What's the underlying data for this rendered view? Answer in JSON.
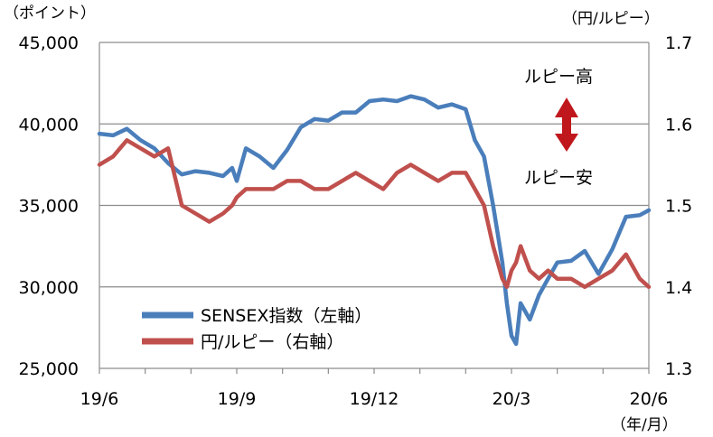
{
  "chart_data": {
    "type": "line",
    "left_axis": {
      "unit": "（ポイント）",
      "range": [
        25000,
        45000
      ],
      "ticks": [
        25000,
        30000,
        35000,
        40000,
        45000
      ],
      "tick_labels": [
        "25,000",
        "30,000",
        "35,000",
        "40,000",
        "45,000"
      ]
    },
    "right_axis": {
      "unit": "（円/ルピー）",
      "range": [
        1.3,
        1.7
      ],
      "ticks": [
        1.3,
        1.4,
        1.5,
        1.6,
        1.7
      ],
      "tick_labels": [
        "1.3",
        "1.4",
        "1.5",
        "1.6",
        "1.7"
      ]
    },
    "x_axis": {
      "unit": "（年/月）",
      "tick_labels": [
        "19/6",
        "19/9",
        "19/12",
        "20/3",
        "20/6"
      ],
      "tick_positions": [
        0,
        3,
        6,
        9,
        12
      ]
    },
    "grid": "horizontal",
    "legend": {
      "placement": "bottom-left",
      "entries": [
        "SENSEX指数（左軸）",
        "円/ルピー（右軸）"
      ]
    },
    "annotations": {
      "rupee_high": "ルピー高",
      "rupee_low": "ルピー安"
    },
    "series": [
      {
        "name": "SENSEX指数（左軸）",
        "axis": "left",
        "color": "#4a7ebb",
        "x": [
          0,
          0.3,
          0.6,
          0.9,
          1.2,
          1.5,
          1.8,
          2.1,
          2.4,
          2.7,
          2.9,
          3.0,
          3.2,
          3.5,
          3.8,
          4.1,
          4.4,
          4.7,
          5.0,
          5.3,
          5.6,
          5.9,
          6.2,
          6.5,
          6.8,
          7.1,
          7.4,
          7.7,
          8.0,
          8.2,
          8.4,
          8.6,
          8.8,
          8.9,
          9.0,
          9.1,
          9.2,
          9.4,
          9.6,
          9.8,
          10.0,
          10.3,
          10.6,
          10.9,
          11.2,
          11.5,
          11.8,
          12.0
        ],
        "values": [
          39400,
          39300,
          39700,
          39000,
          38500,
          37600,
          36900,
          37100,
          37000,
          36800,
          37300,
          36500,
          38500,
          38000,
          37300,
          38400,
          39800,
          40300,
          40200,
          40700,
          40700,
          41400,
          41500,
          41400,
          41700,
          41500,
          41000,
          41200,
          40900,
          39000,
          38000,
          35000,
          31500,
          29000,
          27000,
          26500,
          29000,
          28000,
          29500,
          30500,
          31500,
          31600,
          32200,
          30800,
          32300,
          34300,
          34400,
          34700
        ]
      },
      {
        "name": "円/ルピー（右軸）",
        "axis": "right",
        "color": "#c0504d",
        "x": [
          0,
          0.3,
          0.6,
          0.9,
          1.2,
          1.5,
          1.8,
          2.1,
          2.4,
          2.7,
          2.9,
          3.0,
          3.2,
          3.5,
          3.8,
          4.1,
          4.4,
          4.7,
          5.0,
          5.3,
          5.6,
          5.9,
          6.2,
          6.5,
          6.8,
          7.1,
          7.4,
          7.7,
          8.0,
          8.2,
          8.4,
          8.6,
          8.8,
          8.9,
          9.0,
          9.1,
          9.2,
          9.4,
          9.6,
          9.8,
          10.0,
          10.3,
          10.6,
          10.9,
          11.2,
          11.5,
          11.8,
          12.0
        ],
        "values": [
          1.55,
          1.56,
          1.58,
          1.57,
          1.56,
          1.57,
          1.5,
          1.49,
          1.48,
          1.49,
          1.5,
          1.51,
          1.52,
          1.52,
          1.52,
          1.53,
          1.53,
          1.52,
          1.52,
          1.53,
          1.54,
          1.53,
          1.52,
          1.54,
          1.55,
          1.54,
          1.53,
          1.54,
          1.54,
          1.52,
          1.5,
          1.45,
          1.41,
          1.4,
          1.42,
          1.43,
          1.45,
          1.42,
          1.41,
          1.42,
          1.41,
          1.41,
          1.4,
          1.41,
          1.42,
          1.44,
          1.41,
          1.4
        ]
      }
    ]
  }
}
